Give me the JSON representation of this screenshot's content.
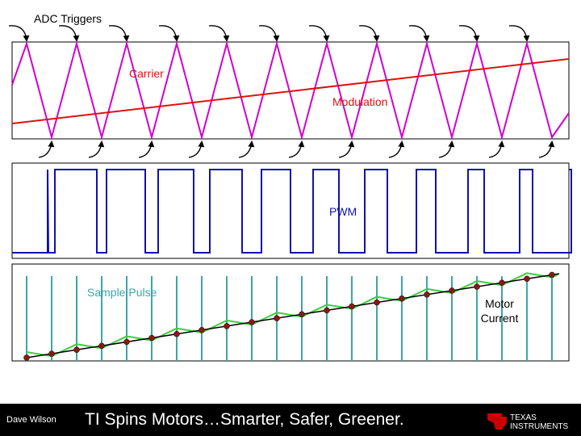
{
  "labels": {
    "adc_triggers": "ADC Triggers",
    "carrier": "Carrier",
    "modulation": "Modulation",
    "pwm": "PWM",
    "sample_pulse": "Sample Pulse",
    "motor_current_line1": "Motor",
    "motor_current_line2": "Current"
  },
  "footer": {
    "presenter": "Dave Wilson",
    "tagline": "TI Spins Motors…Smarter, Safer, Greener.",
    "logo_text_line1": "TEXAS",
    "logo_text_line2": "INSTRUMENTS"
  },
  "colors": {
    "carrier": "#d000d0",
    "modulation": "#e01010",
    "pwm": "#1010b0",
    "sample_pulse": "#3aa6a6",
    "motor_current": "#3ad03a",
    "sample_markers": "#8b1a0a",
    "logo": "#cc0000"
  },
  "icons": {
    "adc_trigger_arrow": "curved-arrow-icon",
    "ti_logo": "texas-instruments-logo-icon"
  }
}
